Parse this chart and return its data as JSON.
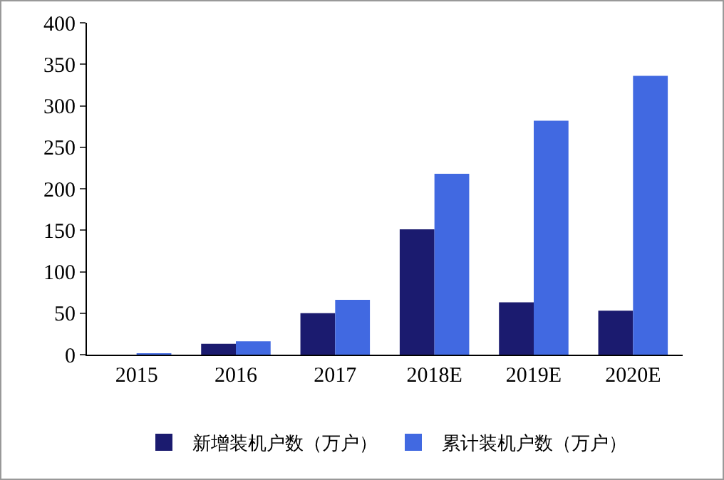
{
  "chart_data": {
    "type": "bar",
    "categories": [
      "2015",
      "2016",
      "2017",
      "2018E",
      "2019E",
      "2020E"
    ],
    "series": [
      {
        "name": "新增装机户数（万户）",
        "color": "#1b1b6f",
        "values": [
          0,
          13,
          50,
          151,
          63,
          53
        ]
      },
      {
        "name": "累计装机户数（万户）",
        "color": "#4169e1",
        "values": [
          1,
          16,
          66,
          218,
          282,
          336
        ]
      }
    ],
    "ylim": [
      0,
      400
    ],
    "yticks": [
      0,
      50,
      100,
      150,
      200,
      250,
      300,
      350,
      400
    ],
    "grid": false,
    "legend": "bottom"
  }
}
